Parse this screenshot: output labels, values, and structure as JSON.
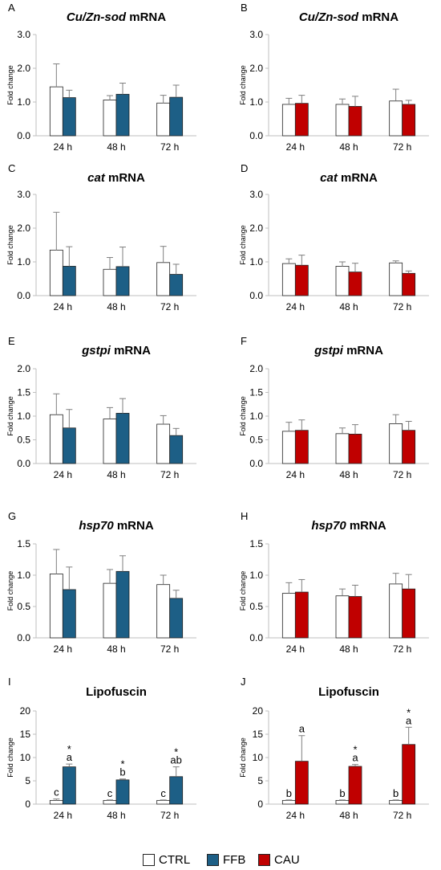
{
  "colors": {
    "CTRL": "#ffffff",
    "FFB": "#1d5f86",
    "CAU": "#c00000",
    "axis": "#bfbfbf",
    "bar_edge": "#222222"
  },
  "legend": [
    {
      "key": "CTRL",
      "label": "CTRL"
    },
    {
      "key": "FFB",
      "label": "FFB"
    },
    {
      "key": "CAU",
      "label": "CAU"
    }
  ],
  "chart_data": [
    {
      "panel": "A",
      "type": "bar",
      "title_italic": "Cu/Zn-sod",
      "title_rest": " mRNA",
      "ylabel": "Fold change",
      "categories": [
        "24 h",
        "48 h",
        "72 h"
      ],
      "ylim": [
        0,
        3
      ],
      "yticks": [
        "0.0",
        "1.0",
        "2.0",
        "3.0"
      ],
      "series": [
        {
          "name": "CTRL",
          "values": [
            1.45,
            1.06,
            0.97
          ],
          "errors": [
            0.68,
            0.13,
            0.23
          ]
        },
        {
          "name": "FFB",
          "values": [
            1.13,
            1.23,
            1.14
          ],
          "errors": [
            0.22,
            0.33,
            0.36
          ]
        }
      ]
    },
    {
      "panel": "B",
      "type": "bar",
      "title_italic": "Cu/Zn-sod",
      "title_rest": " mRNA",
      "ylabel": "Fold change",
      "categories": [
        "24 h",
        "48 h",
        "72 h"
      ],
      "ylim": [
        0,
        3
      ],
      "yticks": [
        "0.0",
        "1.0",
        "2.0",
        "3.0"
      ],
      "series": [
        {
          "name": "CTRL",
          "values": [
            0.93,
            0.93,
            1.03
          ],
          "errors": [
            0.18,
            0.16,
            0.35
          ]
        },
        {
          "name": "CAU",
          "values": [
            0.96,
            0.87,
            0.93
          ],
          "errors": [
            0.24,
            0.3,
            0.12
          ]
        }
      ]
    },
    {
      "panel": "C",
      "type": "bar",
      "title_italic": "cat",
      "title_rest": " mRNA",
      "ylabel": "Fold change",
      "categories": [
        "24 h",
        "48 h",
        "72 h"
      ],
      "ylim": [
        0,
        3
      ],
      "yticks": [
        "0.0",
        "1.0",
        "2.0",
        "3.0"
      ],
      "series": [
        {
          "name": "CTRL",
          "values": [
            1.35,
            0.78,
            0.98
          ],
          "errors": [
            1.12,
            0.35,
            0.48
          ]
        },
        {
          "name": "FFB",
          "values": [
            0.87,
            0.86,
            0.63
          ],
          "errors": [
            0.58,
            0.58,
            0.3
          ]
        }
      ]
    },
    {
      "panel": "D",
      "type": "bar",
      "title_italic": "cat",
      "title_rest": " mRNA",
      "ylabel": "Fold change",
      "categories": [
        "24 h",
        "48 h",
        "72 h"
      ],
      "ylim": [
        0,
        3
      ],
      "yticks": [
        "0.0",
        "1.0",
        "2.0",
        "3.0"
      ],
      "series": [
        {
          "name": "CTRL",
          "values": [
            0.95,
            0.87,
            0.97
          ],
          "errors": [
            0.14,
            0.13,
            0.06
          ]
        },
        {
          "name": "CAU",
          "values": [
            0.9,
            0.7,
            0.66
          ],
          "errors": [
            0.3,
            0.26,
            0.07
          ]
        }
      ]
    },
    {
      "panel": "E",
      "type": "bar",
      "title_italic": "gstpi",
      "title_rest": " mRNA",
      "ylabel": "Fold change",
      "categories": [
        "24 h",
        "48 h",
        "72 h"
      ],
      "ylim": [
        0,
        2
      ],
      "yticks": [
        "0.0",
        "0.5",
        "1.0",
        "1.5",
        "2.0"
      ],
      "series": [
        {
          "name": "CTRL",
          "values": [
            1.03,
            0.94,
            0.83
          ],
          "errors": [
            0.44,
            0.24,
            0.18
          ]
        },
        {
          "name": "FFB",
          "values": [
            0.75,
            1.06,
            0.59
          ],
          "errors": [
            0.39,
            0.31,
            0.15
          ]
        }
      ]
    },
    {
      "panel": "F",
      "type": "bar",
      "title_italic": "gstpi",
      "title_rest": " mRNA",
      "ylabel": "Fold change",
      "categories": [
        "24 h",
        "48 h",
        "72 h"
      ],
      "ylim": [
        0,
        2
      ],
      "yticks": [
        "0.0",
        "0.5",
        "1.0",
        "1.5",
        "2.0"
      ],
      "series": [
        {
          "name": "CTRL",
          "values": [
            0.68,
            0.63,
            0.84
          ],
          "errors": [
            0.19,
            0.12,
            0.19
          ]
        },
        {
          "name": "CAU",
          "values": [
            0.7,
            0.62,
            0.7
          ],
          "errors": [
            0.22,
            0.2,
            0.19
          ]
        }
      ]
    },
    {
      "panel": "G",
      "type": "bar",
      "title_italic": "hsp70",
      "title_rest": " mRNA",
      "ylabel": "Fold change",
      "categories": [
        "24 h",
        "48 h",
        "72 h"
      ],
      "ylim": [
        0,
        1.5
      ],
      "yticks": [
        "0.0",
        "0.5",
        "1.0",
        "1.5"
      ],
      "series": [
        {
          "name": "CTRL",
          "values": [
            1.02,
            0.87,
            0.85
          ],
          "errors": [
            0.39,
            0.22,
            0.15
          ]
        },
        {
          "name": "FFB",
          "values": [
            0.77,
            1.06,
            0.63
          ],
          "errors": [
            0.36,
            0.25,
            0.13
          ]
        }
      ]
    },
    {
      "panel": "H",
      "type": "bar",
      "title_italic": "hsp70",
      "title_rest": " mRNA",
      "ylabel": "Fold change",
      "categories": [
        "24 h",
        "48 h",
        "72 h"
      ],
      "ylim": [
        0,
        1.5
      ],
      "yticks": [
        "0.0",
        "0.5",
        "1.0",
        "1.5"
      ],
      "series": [
        {
          "name": "CTRL",
          "values": [
            0.71,
            0.67,
            0.86
          ],
          "errors": [
            0.17,
            0.11,
            0.17
          ]
        },
        {
          "name": "CAU",
          "values": [
            0.73,
            0.66,
            0.78
          ],
          "errors": [
            0.2,
            0.18,
            0.23
          ]
        }
      ]
    },
    {
      "panel": "I",
      "type": "bar",
      "title_italic": "",
      "title_rest": "Lipofuscin",
      "ylabel": "Fold change",
      "categories": [
        "24 h",
        "48 h",
        "72 h"
      ],
      "ylim": [
        0,
        20
      ],
      "yticks": [
        "0",
        "5",
        "10",
        "15",
        "20"
      ],
      "series": [
        {
          "name": "CTRL",
          "values": [
            0.8,
            0.8,
            0.8
          ],
          "errors": [
            0.3,
            0.1,
            0.1
          ],
          "labels": [
            "c",
            "c",
            "c"
          ],
          "stars": [
            "",
            "",
            ""
          ]
        },
        {
          "name": "FFB",
          "values": [
            8.0,
            5.2,
            5.9
          ],
          "errors": [
            0.6,
            0.2,
            2.1
          ],
          "labels": [
            "a",
            "b",
            "ab"
          ],
          "stars": [
            "*",
            "*",
            "*"
          ]
        }
      ]
    },
    {
      "panel": "J",
      "type": "bar",
      "title_italic": "",
      "title_rest": "Lipofuscin",
      "ylabel": "Fold change",
      "categories": [
        "24 h",
        "48 h",
        "72 h"
      ],
      "ylim": [
        0,
        20
      ],
      "yticks": [
        "0",
        "5",
        "10",
        "15",
        "20"
      ],
      "series": [
        {
          "name": "CTRL",
          "values": [
            0.8,
            0.8,
            0.8
          ],
          "errors": [
            0.1,
            0.1,
            0.1
          ],
          "labels": [
            "b",
            "b",
            "b"
          ],
          "stars": [
            "",
            "",
            ""
          ]
        },
        {
          "name": "CAU",
          "values": [
            9.2,
            8.1,
            12.8
          ],
          "errors": [
            5.5,
            0.4,
            3.7
          ],
          "labels": [
            "a",
            "a",
            "a"
          ],
          "stars": [
            "",
            "*",
            "*"
          ]
        }
      ]
    }
  ]
}
